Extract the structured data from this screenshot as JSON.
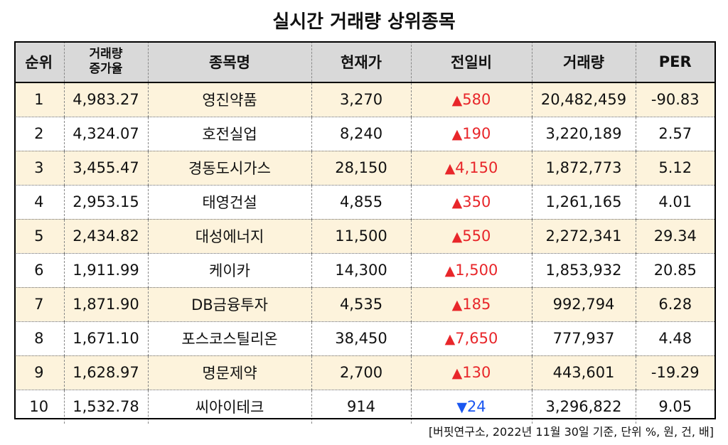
{
  "title": "실시간 거래량 상위종목",
  "headers": {
    "rank": "순위",
    "volume_increase_line1": "거래량",
    "volume_increase_line2": "증가율",
    "name": "종목명",
    "price": "현재가",
    "change": "전일비",
    "volume": "거래량",
    "per": "PER"
  },
  "rows": [
    {
      "rank": "1",
      "increase": "4,983.27",
      "name": "영진약품",
      "price": "3,270",
      "dir": "up",
      "arrow": "▲",
      "change": "580",
      "volume": "20,482,459",
      "per": "-90.83"
    },
    {
      "rank": "2",
      "increase": "4,324.07",
      "name": "호전실업",
      "price": "8,240",
      "dir": "up",
      "arrow": "▲",
      "change": "190",
      "volume": "3,220,189",
      "per": "2.57"
    },
    {
      "rank": "3",
      "increase": "3,455.47",
      "name": "경동도시가스",
      "price": "28,150",
      "dir": "up",
      "arrow": "▲",
      "change": "4,150",
      "volume": "1,872,773",
      "per": "5.12"
    },
    {
      "rank": "4",
      "increase": "2,953.15",
      "name": "태영건설",
      "price": "4,855",
      "dir": "up",
      "arrow": "▲",
      "change": "350",
      "volume": "1,261,165",
      "per": "4.01"
    },
    {
      "rank": "5",
      "increase": "2,434.82",
      "name": "대성에너지",
      "price": "11,500",
      "dir": "up",
      "arrow": "▲",
      "change": "550",
      "volume": "2,272,341",
      "per": "29.34"
    },
    {
      "rank": "6",
      "increase": "1,911.99",
      "name": "케이카",
      "price": "14,300",
      "dir": "up",
      "arrow": "▲",
      "change": "1,500",
      "volume": "1,853,932",
      "per": "20.85"
    },
    {
      "rank": "7",
      "increase": "1,871.90",
      "name": "DB금융투자",
      "price": "4,535",
      "dir": "up",
      "arrow": "▲",
      "change": "185",
      "volume": "992,794",
      "per": "6.28"
    },
    {
      "rank": "8",
      "increase": "1,671.10",
      "name": "포스코스틸리온",
      "price": "38,450",
      "dir": "up",
      "arrow": "▲",
      "change": "7,650",
      "volume": "777,937",
      "per": "4.48"
    },
    {
      "rank": "9",
      "increase": "1,628.97",
      "name": "명문제약",
      "price": "2,700",
      "dir": "up",
      "arrow": "▲",
      "change": "130",
      "volume": "443,601",
      "per": "-19.29"
    },
    {
      "rank": "10",
      "increase": "1,532.78",
      "name": "씨아이테크",
      "price": "914",
      "dir": "down",
      "arrow": "▼",
      "change": "24",
      "volume": "3,296,822",
      "per": "9.05"
    }
  ],
  "colors": {
    "header_bg": "#d9d9d9",
    "alt_row_bg": "#fdf3dc",
    "up": "#e8262a",
    "down": "#1a56f0"
  },
  "footnote": "[버핏연구소, 2022년 11월 30일 기준, 단위 %, 원, 건, 배]"
}
